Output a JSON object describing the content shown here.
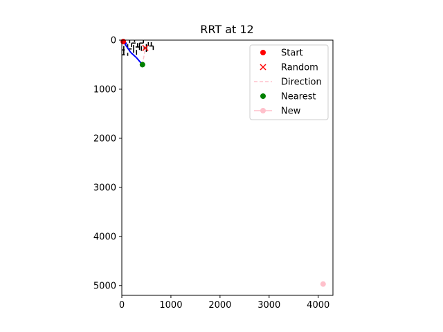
{
  "chart_data": {
    "type": "scatter",
    "title": "RRT at 12",
    "xlabel": "",
    "ylabel": "",
    "xlim": [
      0,
      4300
    ],
    "ylim": [
      5200,
      0
    ],
    "y_inverted": true,
    "grid": false,
    "x_ticks": [
      0,
      1000,
      2000,
      3000,
      4000
    ],
    "y_ticks": [
      0,
      1000,
      2000,
      3000,
      4000,
      5000
    ],
    "legend": {
      "placement": "top-right",
      "entries": [
        {
          "label": "Start",
          "marker": "circle",
          "color": "#ff0000"
        },
        {
          "label": "Random",
          "marker": "x",
          "color": "#ff0000"
        },
        {
          "label": "Direction",
          "marker": "dashed-line",
          "color": "#ffc0cb"
        },
        {
          "label": "Nearest",
          "marker": "circle",
          "color": "#008000"
        },
        {
          "label": "New",
          "marker": "line-circle",
          "color": "#ffc0cb"
        }
      ]
    },
    "points": {
      "start": {
        "x": 30,
        "y": 30,
        "color": "#ff0000"
      },
      "random": {
        "x": 480,
        "y": 160,
        "color": "#ff0000"
      },
      "nearest": {
        "x": 420,
        "y": 500,
        "color": "#008000"
      },
      "new": {
        "x": 4100,
        "y": 4970,
        "color": "#ffc0cb"
      }
    },
    "tree_edges": [
      {
        "from": [
          30,
          30
        ],
        "to": [
          180,
          250
        ],
        "color": "#0000ff"
      },
      {
        "from": [
          180,
          250
        ],
        "to": [
          300,
          360
        ],
        "color": "#0000ff"
      },
      {
        "from": [
          300,
          360
        ],
        "to": [
          420,
          500
        ],
        "color": "#0000ff"
      },
      {
        "from": [
          30,
          30
        ],
        "to": [
          100,
          70
        ],
        "color": "#0000ff"
      }
    ],
    "direction_line": {
      "from": [
        420,
        500
      ],
      "to": [
        480,
        160
      ],
      "color": "#ffc0cb"
    },
    "obstacles_color": "#000000",
    "obstacle_segments": [
      [
        [
          0,
          40
        ],
        [
          80,
          40
        ]
      ],
      [
        [
          80,
          40
        ],
        [
          80,
          120
        ]
      ],
      [
        [
          0,
          200
        ],
        [
          60,
          200
        ]
      ],
      [
        [
          40,
          120
        ],
        [
          40,
          300
        ]
      ],
      [
        [
          120,
          80
        ],
        [
          120,
          180
        ]
      ],
      [
        [
          120,
          180
        ],
        [
          200,
          180
        ]
      ],
      [
        [
          160,
          0
        ],
        [
          160,
          60
        ]
      ],
      [
        [
          200,
          60
        ],
        [
          280,
          60
        ]
      ],
      [
        [
          200,
          60
        ],
        [
          200,
          140
        ]
      ],
      [
        [
          240,
          100
        ],
        [
          240,
          260
        ]
      ],
      [
        [
          260,
          0
        ],
        [
          260,
          40
        ]
      ],
      [
        [
          280,
          140
        ],
        [
          360,
          140
        ]
      ],
      [
        [
          320,
          60
        ],
        [
          320,
          140
        ]
      ],
      [
        [
          300,
          200
        ],
        [
          300,
          300
        ]
      ],
      [
        [
          360,
          60
        ],
        [
          440,
          60
        ]
      ],
      [
        [
          360,
          60
        ],
        [
          360,
          200
        ]
      ],
      [
        [
          400,
          120
        ],
        [
          400,
          220
        ]
      ],
      [
        [
          440,
          0
        ],
        [
          440,
          60
        ]
      ],
      [
        [
          440,
          160
        ],
        [
          520,
          160
        ]
      ],
      [
        [
          500,
          80
        ],
        [
          500,
          240
        ]
      ],
      [
        [
          540,
          40
        ],
        [
          540,
          120
        ]
      ],
      [
        [
          560,
          120
        ],
        [
          640,
          120
        ]
      ],
      [
        [
          600,
          40
        ],
        [
          600,
          120
        ]
      ],
      [
        [
          640,
          120
        ],
        [
          640,
          200
        ]
      ],
      [
        [
          0,
          300
        ],
        [
          60,
          300
        ]
      ],
      [
        [
          120,
          260
        ],
        [
          120,
          320
        ]
      ]
    ]
  }
}
